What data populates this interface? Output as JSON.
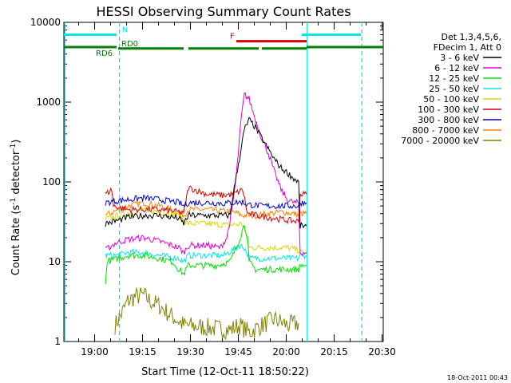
{
  "chart_data": {
    "type": "line",
    "title": "HESSI Observing Summary Count Rates",
    "xlabel": "Start Time (12-Oct-11 18:50:22)",
    "ylabel_main": "Count Rate (s",
    "ylabel_sup1": "-1",
    "ylabel_mid": " detector",
    "ylabel_sup2": "-1",
    "ylabel_end": ")",
    "yscale": "log",
    "ylim": [
      1,
      10000
    ],
    "xlim_minutes": [
      0,
      100
    ],
    "x_ticks": [
      {
        "label": "19:00",
        "minutes": 9.63
      },
      {
        "label": "19:15",
        "minutes": 24.63
      },
      {
        "label": "19:30",
        "minutes": 39.63
      },
      {
        "label": "19:45",
        "minutes": 54.63
      },
      {
        "label": "20:00",
        "minutes": 69.63
      },
      {
        "label": "20:15",
        "minutes": 84.63
      },
      {
        "label": "20:30",
        "minutes": 99.63
      }
    ],
    "y_ticks": [
      {
        "label": "1",
        "value": 1
      },
      {
        "label": "10",
        "value": 10
      },
      {
        "label": "100",
        "value": 100
      },
      {
        "label": "1000",
        "value": 1000
      },
      {
        "label": "10000",
        "value": 10000
      }
    ],
    "legend": {
      "placement": "right",
      "header": [
        "Det 1,3,4,5,6,",
        "FDecim 1, Att 0"
      ],
      "entries": [
        {
          "label": "3 - 6 keV",
          "color": "#000000"
        },
        {
          "label": "6 - 12 keV",
          "color": "#e000e0"
        },
        {
          "label": "12 - 25 keV",
          "color": "#00e000"
        },
        {
          "label": "25 - 50 keV",
          "color": "#00e8e8"
        },
        {
          "label": "50 - 100 keV",
          "color": "#d8d800"
        },
        {
          "label": "100 - 300 keV",
          "color": "#e00000"
        },
        {
          "label": "300 - 800 keV",
          "color": "#0000d8"
        },
        {
          "label": "800 - 7000 keV",
          "color": "#ff8000"
        },
        {
          "label": "7000 - 20000 keV",
          "color": "#808000"
        }
      ]
    },
    "series": [
      {
        "name": "3 - 6 keV",
        "color": "#000000",
        "points": [
          [
            13,
            30
          ],
          [
            17,
            33
          ],
          [
            20,
            36
          ],
          [
            25,
            38
          ],
          [
            30,
            38
          ],
          [
            36,
            35
          ],
          [
            37.5,
            30
          ],
          [
            39,
            38
          ],
          [
            45,
            38
          ],
          [
            50,
            38
          ],
          [
            52,
            38
          ],
          [
            53,
            70
          ],
          [
            55,
            200
          ],
          [
            56.5,
            450
          ],
          [
            58,
            600
          ],
          [
            60,
            480
          ],
          [
            63,
            300
          ],
          [
            66,
            190
          ],
          [
            68,
            150
          ],
          [
            70,
            130
          ],
          [
            72,
            110
          ],
          [
            73.5,
            100
          ],
          [
            74,
            28
          ],
          [
            76,
            28
          ]
        ]
      },
      {
        "name": "6 - 12 keV",
        "color": "#e000e0",
        "points": [
          [
            13,
            14
          ],
          [
            16,
            17
          ],
          [
            20,
            19
          ],
          [
            25,
            20
          ],
          [
            30,
            18
          ],
          [
            36,
            15
          ],
          [
            37.5,
            13
          ],
          [
            39,
            16
          ],
          [
            45,
            16
          ],
          [
            49,
            15
          ],
          [
            51,
            20
          ],
          [
            52.5,
            40
          ],
          [
            54,
            120
          ],
          [
            55.5,
            600
          ],
          [
            56.5,
            1250
          ],
          [
            58,
            1100
          ],
          [
            60,
            600
          ],
          [
            62,
            350
          ],
          [
            64,
            230
          ],
          [
            66,
            130
          ],
          [
            68,
            80
          ],
          [
            70,
            60
          ],
          [
            72,
            55
          ],
          [
            73.5,
            55
          ],
          [
            74,
            13
          ],
          [
            76,
            13
          ]
        ]
      },
      {
        "name": "12 - 25 keV",
        "color": "#00e000",
        "points": [
          [
            13,
            5
          ],
          [
            13.5,
            10
          ],
          [
            17,
            11
          ],
          [
            20,
            12
          ],
          [
            25,
            12
          ],
          [
            30,
            11
          ],
          [
            34,
            10
          ],
          [
            36,
            8
          ],
          [
            37.5,
            7
          ],
          [
            39,
            9
          ],
          [
            44,
            9
          ],
          [
            48,
            9
          ],
          [
            52,
            10
          ],
          [
            54,
            15
          ],
          [
            55.5,
            22
          ],
          [
            56.5,
            30
          ],
          [
            57.5,
            20
          ],
          [
            58,
            10
          ],
          [
            60,
            8
          ],
          [
            64,
            8
          ],
          [
            68,
            8
          ],
          [
            72,
            8
          ],
          [
            73.5,
            8
          ],
          [
            74,
            9
          ],
          [
            76,
            9
          ]
        ]
      },
      {
        "name": "25 - 50 keV",
        "color": "#00e8e8",
        "points": [
          [
            13,
            12
          ],
          [
            17,
            12
          ],
          [
            20,
            13
          ],
          [
            25,
            13
          ],
          [
            30,
            12
          ],
          [
            36,
            11
          ],
          [
            37.5,
            10
          ],
          [
            39,
            12
          ],
          [
            44,
            12
          ],
          [
            50,
            12
          ],
          [
            53,
            14
          ],
          [
            55,
            16
          ],
          [
            56.5,
            15
          ],
          [
            58,
            11
          ],
          [
            62,
            11
          ],
          [
            66,
            11
          ],
          [
            70,
            11
          ],
          [
            73.5,
            11
          ],
          [
            74,
            12
          ],
          [
            76,
            12
          ]
        ]
      },
      {
        "name": "50 - 100 keV",
        "color": "#d8d800",
        "points": [
          [
            13,
            34
          ],
          [
            17,
            38
          ],
          [
            20,
            40
          ],
          [
            25,
            45
          ],
          [
            30,
            42
          ],
          [
            36,
            38
          ],
          [
            37.5,
            33
          ],
          [
            39,
            30
          ],
          [
            44,
            30
          ],
          [
            50,
            29
          ],
          [
            53,
            29
          ],
          [
            56,
            30
          ],
          [
            58,
            15
          ],
          [
            62,
            15
          ],
          [
            66,
            15
          ],
          [
            70,
            15
          ],
          [
            73.5,
            14
          ],
          [
            74,
            13
          ],
          [
            76,
            13
          ]
        ]
      },
      {
        "name": "100 - 300 keV",
        "color": "#e00000",
        "points": [
          [
            13,
            70
          ],
          [
            15,
            80
          ],
          [
            15.5,
            50
          ],
          [
            20,
            45
          ],
          [
            25,
            45
          ],
          [
            30,
            45
          ],
          [
            36,
            42
          ],
          [
            37.5,
            40
          ],
          [
            39,
            85
          ],
          [
            45,
            70
          ],
          [
            50,
            68
          ],
          [
            53,
            70
          ],
          [
            56,
            80
          ],
          [
            57.5,
            40
          ],
          [
            62,
            37
          ],
          [
            66,
            35
          ],
          [
            70,
            33
          ],
          [
            73.5,
            32
          ],
          [
            74,
            70
          ],
          [
            76,
            70
          ]
        ]
      },
      {
        "name": "300 - 800 keV",
        "color": "#0000d8",
        "points": [
          [
            13,
            55
          ],
          [
            17,
            58
          ],
          [
            20,
            60
          ],
          [
            25,
            63
          ],
          [
            30,
            60
          ],
          [
            36,
            55
          ],
          [
            37.5,
            50
          ],
          [
            39,
            55
          ],
          [
            45,
            55
          ],
          [
            50,
            54
          ],
          [
            53,
            55
          ],
          [
            56,
            56
          ],
          [
            57.5,
            52
          ],
          [
            62,
            50
          ],
          [
            66,
            50
          ],
          [
            70,
            50
          ],
          [
            73.5,
            50
          ],
          [
            74,
            55
          ],
          [
            76,
            55
          ]
        ]
      },
      {
        "name": "800 - 7000 keV",
        "color": "#ff8000",
        "points": [
          [
            13,
            38
          ],
          [
            17,
            45
          ],
          [
            20,
            50
          ],
          [
            25,
            55
          ],
          [
            30,
            50
          ],
          [
            36,
            42
          ],
          [
            37.5,
            38
          ],
          [
            39,
            45
          ],
          [
            45,
            45
          ],
          [
            50,
            43
          ],
          [
            53,
            42
          ],
          [
            56,
            38
          ],
          [
            60,
            38
          ],
          [
            64,
            40
          ],
          [
            68,
            42
          ],
          [
            72,
            40
          ],
          [
            73.5,
            38
          ],
          [
            74,
            40
          ],
          [
            76,
            40
          ]
        ]
      },
      {
        "name": "7000 - 20000 keV",
        "color": "#808000",
        "points": [
          [
            16,
            1.6
          ],
          [
            18,
            2.2
          ],
          [
            20,
            3.2
          ],
          [
            22,
            3.6
          ],
          [
            25,
            3.8
          ],
          [
            27,
            3.2
          ],
          [
            30,
            2.8
          ],
          [
            33,
            2.2
          ],
          [
            36,
            1.8
          ],
          [
            37.5,
            1.6
          ],
          [
            52,
            1.4
          ],
          [
            55,
            1.6
          ],
          [
            58,
            1.3
          ],
          [
            62,
            1.6
          ],
          [
            66,
            1.9
          ],
          [
            70,
            1.6
          ],
          [
            73.5,
            1.7
          ]
        ]
      }
    ],
    "attenuator_bars": [
      {
        "label": "N",
        "color": "#00e8e8",
        "y_value": 7000,
        "segments": [
          [
            0,
            16.5
          ],
          [
            74.5,
            93
          ]
        ],
        "label_at": 18.2
      },
      {
        "label": "RD0",
        "color": "#008000",
        "y_value": 4700,
        "segments": [
          [
            17,
            37.5
          ],
          [
            39,
            61
          ],
          [
            62,
            76
          ]
        ],
        "label_at": 18
      },
      {
        "label": "RD6",
        "color": "#008000",
        "y_value": 4900,
        "segments": [
          [
            0,
            16.5
          ],
          [
            76,
            100
          ]
        ],
        "label_at": 10
      },
      {
        "label": "F",
        "color": "#e00000",
        "y_value": 5800,
        "segments": [
          [
            54,
            76
          ]
        ],
        "label_at": 52
      }
    ],
    "vertical_lines": [
      {
        "minutes": 0.3,
        "style": "solid",
        "color": "#00e8e8"
      },
      {
        "minutes": 17.4,
        "style": "dashed",
        "color": "#00e8e8"
      },
      {
        "minutes": 76.2,
        "style": "solid",
        "color": "#00e8e8"
      },
      {
        "minutes": 93.3,
        "style": "dashed",
        "color": "#00e8e8"
      }
    ],
    "timestamp": "18-Oct-2011 00:43"
  }
}
